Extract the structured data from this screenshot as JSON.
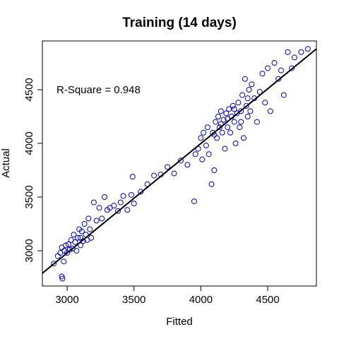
{
  "chart_data": {
    "type": "scatter",
    "title": "Training (14 days)",
    "x_label": "Fitted",
    "y_label": "Actual",
    "annotation": "R-Square = 0.948",
    "xlim": [
      2815,
      4864
    ],
    "ylim": [
      2671,
      4954
    ],
    "xticks": [
      3000,
      3500,
      4000,
      4500
    ],
    "yticks": [
      3000,
      3500,
      4000,
      4500
    ],
    "color": "#0000cc",
    "line_color": "#000000",
    "fit_line": {
      "x": [
        2815,
        4864
      ],
      "y": [
        2790,
        4880
      ]
    },
    "x": [
      2900,
      2930,
      2950,
      2960,
      2975,
      2980,
      2990,
      3000,
      3010,
      3020,
      3030,
      3040,
      3050,
      3060,
      3070,
      3080,
      3090,
      3100,
      3110,
      3120,
      3130,
      3140,
      3150,
      3160,
      3170,
      3180,
      3200,
      3220,
      3240,
      3260,
      3280,
      3300,
      3320,
      3350,
      3380,
      3400,
      3420,
      3450,
      3480,
      3490,
      3500,
      3550,
      3600,
      3650,
      3700,
      3750,
      3800,
      3850,
      3900,
      3950,
      3960,
      3980,
      4000,
      4010,
      4020,
      4040,
      4050,
      4060,
      4080,
      4090,
      4100,
      4110,
      4120,
      4130,
      4140,
      4150,
      4160,
      4170,
      4180,
      4190,
      4200,
      4210,
      4220,
      4230,
      4240,
      4250,
      4260,
      4270,
      4280,
      4290,
      4300,
      4310,
      4320,
      4330,
      4340,
      4350,
      4360,
      4370,
      4380,
      4400,
      4420,
      4440,
      4460,
      4480,
      4500,
      4520,
      4550,
      4580,
      4600,
      4620,
      4650,
      4680,
      4700,
      4750,
      4800,
      2960,
      2965,
      3100,
      4100,
      4150,
      4200,
      4250,
      4300,
      4350
    ],
    "y": [
      2880,
      2950,
      2980,
      3030,
      2900,
      3000,
      3050,
      2980,
      3060,
      3010,
      3100,
      3020,
      3150,
      3080,
      3000,
      3120,
      3200,
      3050,
      3180,
      3090,
      3250,
      3150,
      3100,
      3300,
      3200,
      3120,
      3450,
      3280,
      3400,
      3300,
      3500,
      3380,
      3400,
      3420,
      3370,
      3450,
      3510,
      3380,
      3520,
      3690,
      3440,
      3550,
      3620,
      3700,
      3710,
      3780,
      3720,
      3840,
      3800,
      3460,
      3900,
      3950,
      4050,
      3850,
      4100,
      3980,
      4150,
      3900,
      3620,
      4100,
      3750,
      4200,
      4050,
      4250,
      4150,
      4300,
      4100,
      4220,
      3950,
      4280,
      4150,
      4320,
      4100,
      4250,
      4350,
      4200,
      4000,
      4280,
      4380,
      4150,
      4300,
      4450,
      4050,
      4600,
      4350,
      4250,
      4500,
      4300,
      4550,
      4420,
      4200,
      4480,
      4650,
      4380,
      4700,
      4300,
      4750,
      4600,
      4680,
      4450,
      4850,
      4700,
      4800,
      4850,
      4880,
      2760,
      2740,
      3120,
      4080,
      4180,
      4230,
      4320,
      4200,
      4420
    ]
  }
}
